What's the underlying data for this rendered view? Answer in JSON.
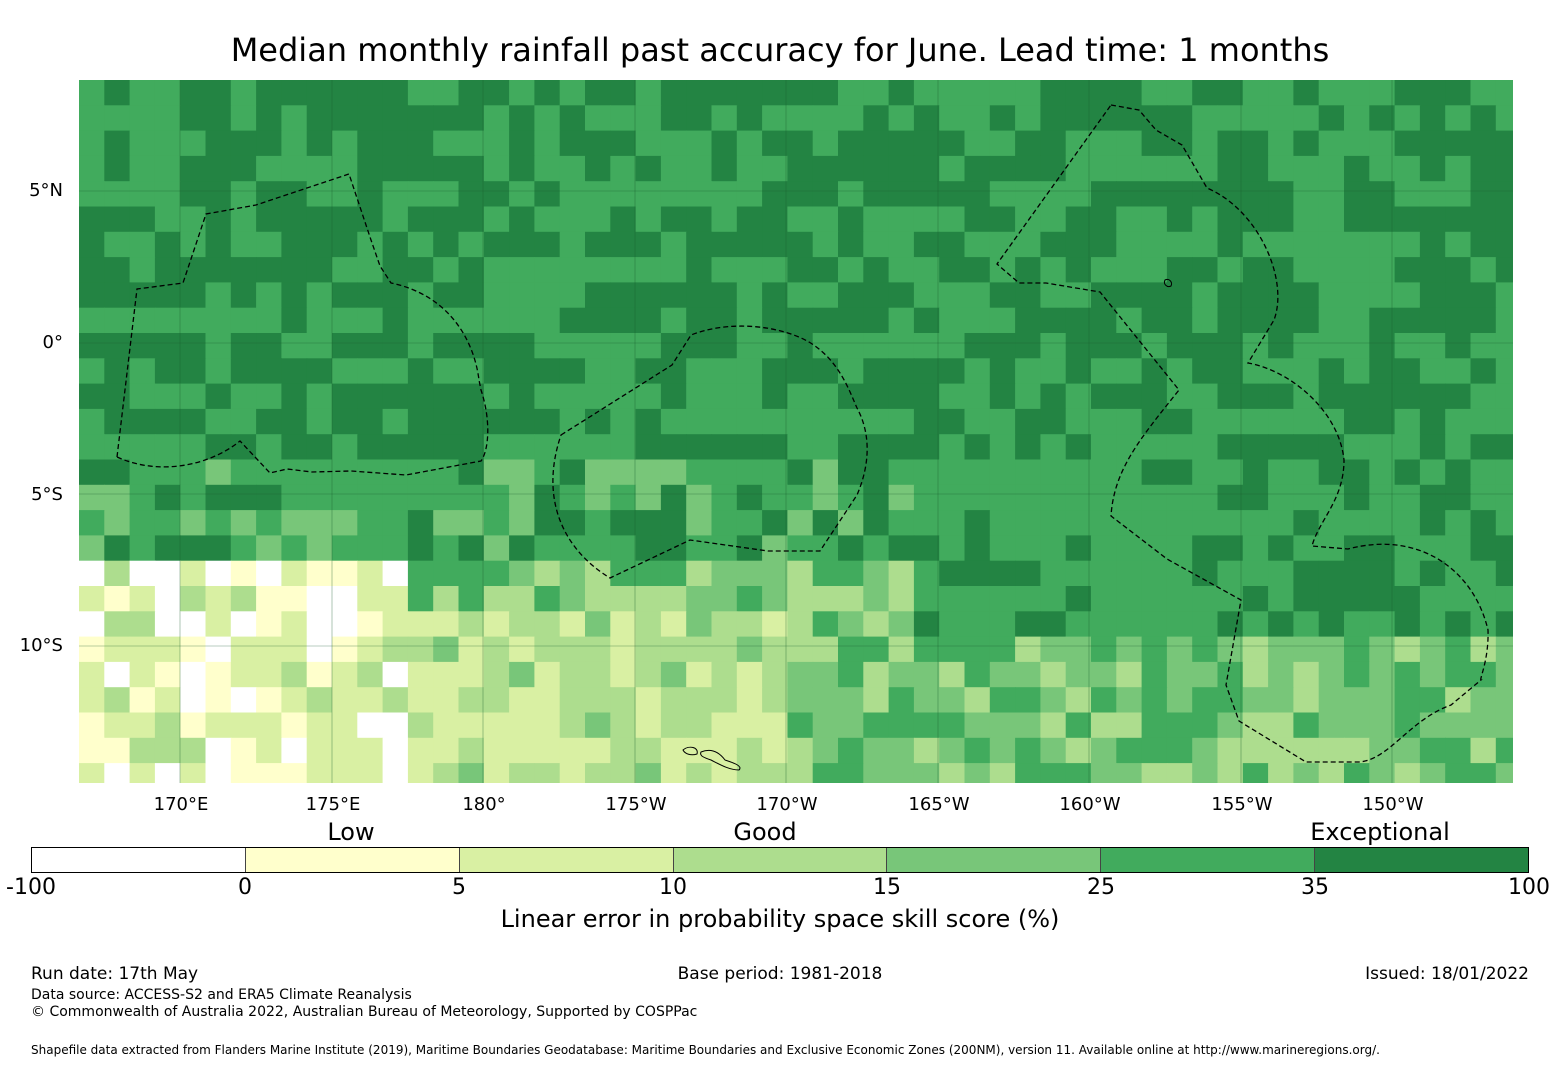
{
  "title": "Median monthly rainfall past accuracy for June. Lead time: 1 months",
  "map": {
    "lat_labels": [
      "5°N",
      "0°",
      "5°S",
      "10°S"
    ],
    "lon_labels": [
      "170°E",
      "175°E",
      "180°",
      "175°W",
      "170°W",
      "165°W",
      "160°W",
      "155°W",
      "150°W"
    ]
  },
  "legend": {
    "categories": [
      "Low",
      "Good",
      "Exceptional"
    ],
    "bins": [
      -100,
      0,
      5,
      10,
      15,
      25,
      35,
      100
    ],
    "tick_labels": [
      "-100",
      "0",
      "5",
      "10",
      "15",
      "25",
      "35",
      "100"
    ],
    "colors": [
      "#ffffff",
      "#ffffcc",
      "#d9f0a3",
      "#addd8e",
      "#78c679",
      "#41ab5d",
      "#238443"
    ],
    "caption": "Linear error in probability space skill score (%)"
  },
  "footer": {
    "run_date": "Run date: 17th May",
    "base_period": "Base period: 1981-2018",
    "issued": "Issued: 18/01/2022",
    "data_source": "Data source: ACCESS-S2 and ERA5 Climate Reanalysis",
    "copyright": "© Commonwealth of Australia 2022, Australian Bureau of Meteorology, Supported by COSPPac",
    "shapefile": "Shapefile data extracted from Flanders Marine Institute (2019), Maritime Boundaries Geodatabase: Maritime Boundaries and Exclusive Economic Zones (200NM), version 11. Available online at http://www.marineregions.org/."
  }
}
